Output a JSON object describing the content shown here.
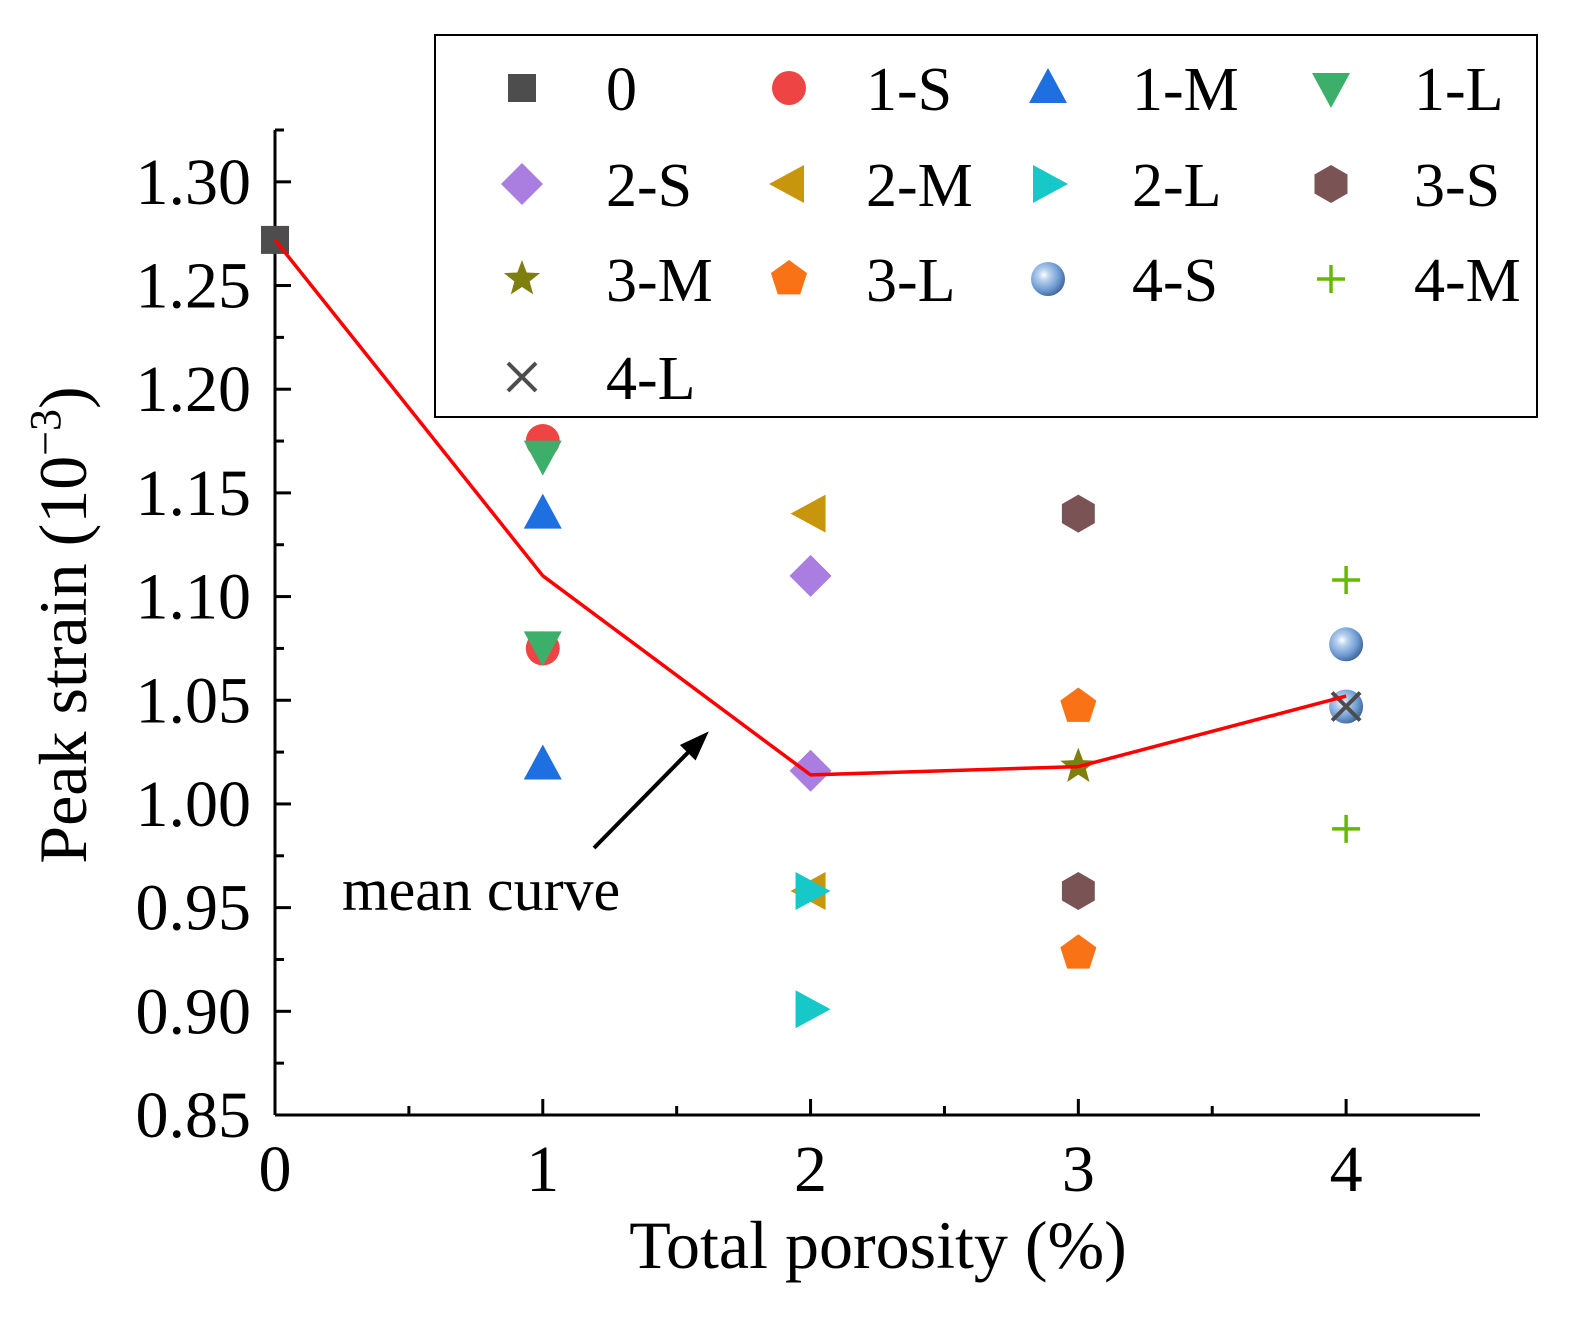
{
  "chart_data": {
    "type": "scatter",
    "xlabel": "Total porosity (%)",
    "ylabel_main": "Peak strain (10",
    "ylabel_sup": "−3",
    "ylabel_close": ")",
    "xlim": [
      0,
      4.5
    ],
    "ylim": [
      0.85,
      1.325
    ],
    "x_ticks": [
      0,
      1,
      2,
      3,
      4
    ],
    "x_tick_labels": [
      "0",
      "1",
      "2",
      "3",
      "4"
    ],
    "y_ticks": [
      0.85,
      0.9,
      0.95,
      1.0,
      1.05,
      1.1,
      1.15,
      1.2,
      1.25,
      1.3
    ],
    "y_tick_labels": [
      "0.85",
      "0.90",
      "0.95",
      "1.00",
      "1.05",
      "1.10",
      "1.15",
      "1.20",
      "1.25",
      "1.30"
    ],
    "legend_position": "top-right",
    "series": [
      {
        "name": "0",
        "marker": "square",
        "color": "#4d4d4d",
        "x": [
          0
        ],
        "y": [
          1.272
        ]
      },
      {
        "name": "1-S",
        "marker": "circle",
        "color": "#ef4444",
        "x": [
          1,
          1
        ],
        "y": [
          1.175,
          1.075
        ]
      },
      {
        "name": "1-M",
        "marker": "triangle-up",
        "color": "#1e6fe0",
        "x": [
          1,
          1
        ],
        "y": [
          1.14,
          1.019
        ]
      },
      {
        "name": "1-L",
        "marker": "triangle-down",
        "color": "#3cb06a",
        "x": [
          1,
          1
        ],
        "y": [
          1.168,
          1.076
        ]
      },
      {
        "name": "2-S",
        "marker": "diamond",
        "color": "#a97ee0",
        "x": [
          2,
          2
        ],
        "y": [
          1.11,
          1.016
        ]
      },
      {
        "name": "2-M",
        "marker": "triangle-left",
        "color": "#c8960c",
        "x": [
          2,
          2
        ],
        "y": [
          1.14,
          0.958
        ]
      },
      {
        "name": "2-L",
        "marker": "triangle-right",
        "color": "#16c8c8",
        "x": [
          2,
          2
        ],
        "y": [
          0.958,
          0.901
        ]
      },
      {
        "name": "3-S",
        "marker": "hexagon",
        "color": "#7a5454",
        "x": [
          3,
          3
        ],
        "y": [
          1.14,
          0.958
        ]
      },
      {
        "name": "3-M",
        "marker": "star",
        "color": "#7f7f0f",
        "x": [
          3
        ],
        "y": [
          1.018
        ]
      },
      {
        "name": "3-L",
        "marker": "pentagon",
        "color": "#f97316",
        "x": [
          3,
          3
        ],
        "y": [
          1.047,
          0.928
        ]
      },
      {
        "name": "4-S",
        "marker": "sphere",
        "color": "#6c9bd2",
        "x": [
          4,
          4
        ],
        "y": [
          1.077,
          1.047
        ]
      },
      {
        "name": "4-M",
        "marker": "plus",
        "color": "#66b800",
        "x": [
          4,
          4
        ],
        "y": [
          1.108,
          0.988
        ]
      },
      {
        "name": "4-L",
        "marker": "x",
        "color": "#4d4d4d",
        "x": [
          4
        ],
        "y": [
          1.047
        ]
      }
    ],
    "mean_curve": {
      "color": "#ff0000",
      "x": [
        0,
        1,
        2,
        3,
        4
      ],
      "y": [
        1.272,
        1.11,
        1.014,
        1.018,
        1.052
      ]
    },
    "annotation": {
      "text": "mean curve",
      "arrow_to": [
        1.62,
        1.035
      ]
    }
  }
}
